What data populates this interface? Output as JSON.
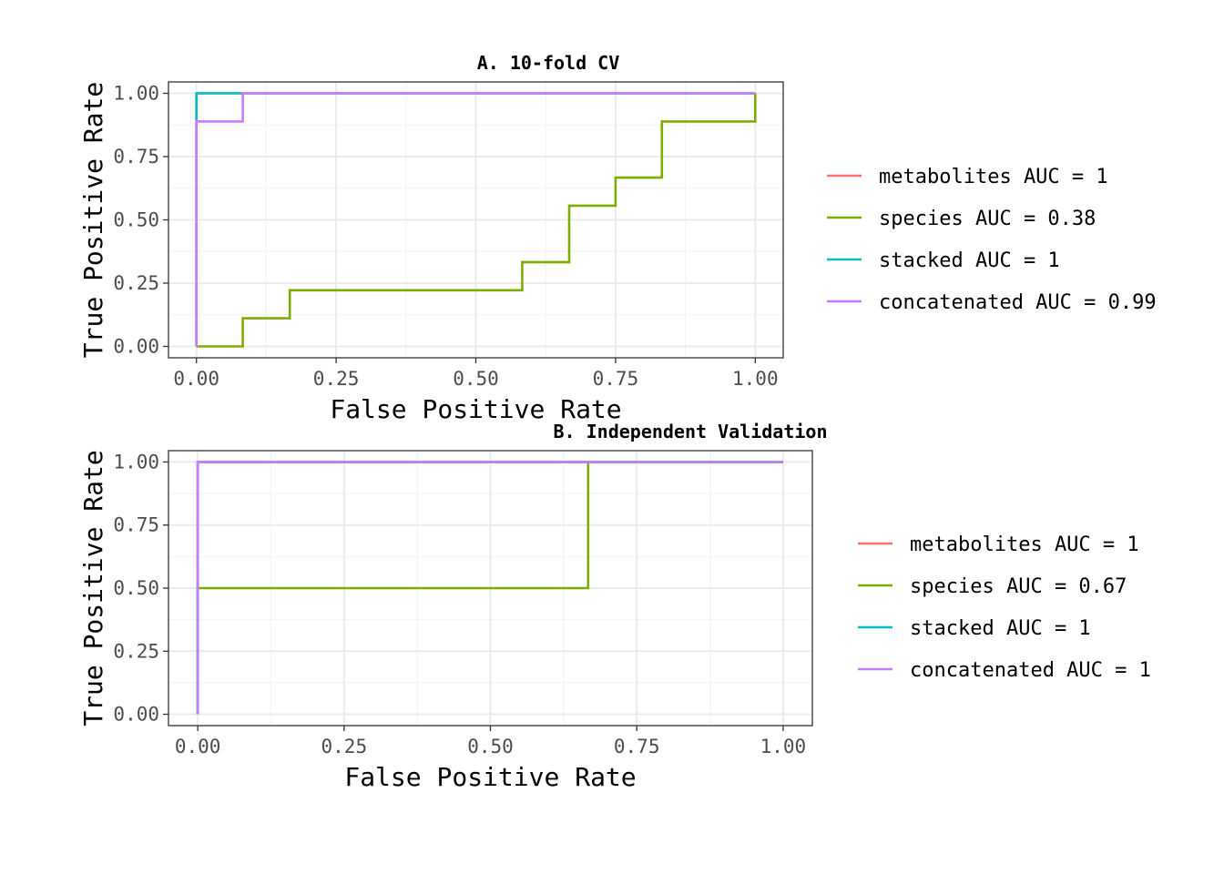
{
  "chart_data": [
    {
      "type": "line",
      "step": true,
      "title": "A. 10-fold CV",
      "xlabel": "False Positive Rate",
      "ylabel": "True Positive Rate",
      "xlim": [
        -0.05,
        1.05
      ],
      "ylim": [
        -0.045,
        1.045
      ],
      "xticks": [
        "0.00",
        "0.25",
        "0.50",
        "0.75",
        "1.00"
      ],
      "yticks": [
        "0.00",
        "0.25",
        "0.50",
        "0.75",
        "1.00"
      ],
      "grid": true,
      "legend_position": "right",
      "series": [
        {
          "name": "metabolites AUC = 1",
          "color": "#F8766D",
          "x": [
            0,
            0,
            1
          ],
          "y": [
            0,
            1,
            1
          ]
        },
        {
          "name": "species AUC = 0.38",
          "color": "#7CAE00",
          "x": [
            0,
            0.083,
            0.083,
            0.167,
            0.167,
            0.583,
            0.583,
            0.667,
            0.667,
            0.75,
            0.75,
            0.833,
            0.833,
            1,
            1
          ],
          "y": [
            0,
            0,
            0.111,
            0.111,
            0.222,
            0.222,
            0.333,
            0.333,
            0.556,
            0.556,
            0.667,
            0.667,
            0.889,
            0.889,
            1
          ]
        },
        {
          "name": "stacked AUC = 1",
          "color": "#00BFC4",
          "x": [
            0,
            0,
            1
          ],
          "y": [
            0,
            1,
            1
          ]
        },
        {
          "name": "concatenated AUC = 0.99",
          "color": "#C77CFF",
          "x": [
            0,
            0,
            0.083,
            0.083,
            1
          ],
          "y": [
            0,
            0.889,
            0.889,
            1,
            1
          ]
        }
      ]
    },
    {
      "type": "line",
      "step": true,
      "title": "B. Independent Validation",
      "xlabel": "False Positive Rate",
      "ylabel": "True Positive Rate",
      "xlim": [
        -0.05,
        1.05
      ],
      "ylim": [
        -0.045,
        1.045
      ],
      "xticks": [
        "0.00",
        "0.25",
        "0.50",
        "0.75",
        "1.00"
      ],
      "yticks": [
        "0.00",
        "0.25",
        "0.50",
        "0.75",
        "1.00"
      ],
      "grid": true,
      "legend_position": "right",
      "series": [
        {
          "name": "metabolites AUC = 1",
          "color": "#F8766D",
          "x": [
            0,
            0,
            1
          ],
          "y": [
            0,
            1,
            1
          ]
        },
        {
          "name": "species AUC = 0.67",
          "color": "#7CAE00",
          "x": [
            0,
            0,
            0.667,
            0.667,
            1
          ],
          "y": [
            0,
            0.5,
            0.5,
            1,
            1
          ]
        },
        {
          "name": "stacked AUC = 1",
          "color": "#00BFC4",
          "x": [
            0,
            0,
            1
          ],
          "y": [
            0,
            1,
            1
          ]
        },
        {
          "name": "concatenated AUC = 1",
          "color": "#C77CFF",
          "x": [
            0,
            0,
            1
          ],
          "y": [
            0,
            1,
            1
          ]
        }
      ]
    }
  ]
}
